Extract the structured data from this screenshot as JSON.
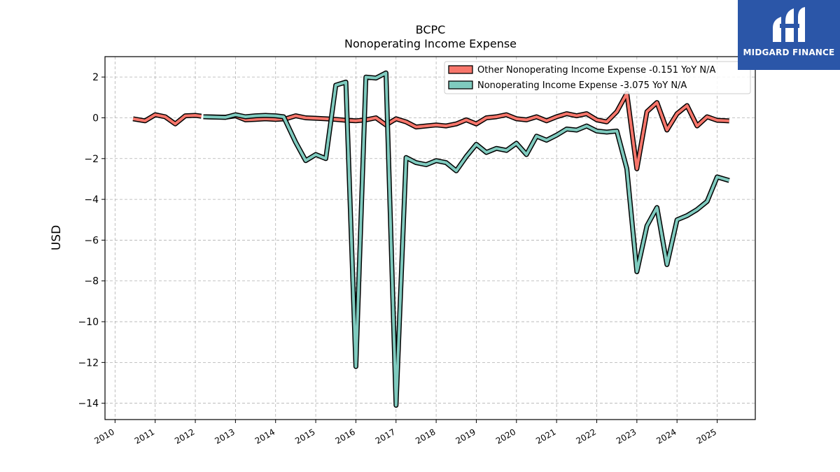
{
  "chart_data": {
    "type": "line",
    "title": "BCPC",
    "subtitle": "Nonoperating Income Expense",
    "ylabel": "USD",
    "xlabel": "",
    "ylim": [
      -14.8,
      3.0
    ],
    "xlim": [
      2009.75,
      2025.95
    ],
    "yticks": [
      2,
      0,
      -2,
      -4,
      -6,
      -8,
      -10,
      -12,
      -14
    ],
    "xticks": [
      "2010",
      "2011",
      "2012",
      "2013",
      "2014",
      "2015",
      "2016",
      "2017",
      "2018",
      "2019",
      "2020",
      "2021",
      "2022",
      "2023",
      "2024",
      "2025"
    ],
    "grid": true,
    "legend_position": "top-right",
    "series": [
      {
        "name": "Other Nonoperating Income Expense  -0.151 YoY N/A",
        "color": "#f7766b",
        "segments": [
          [
            [
              2010.45,
              -0.05
            ],
            [
              2010.75,
              -0.15
            ],
            [
              2011.0,
              0.15
            ],
            [
              2011.25,
              0.05
            ],
            [
              2011.5,
              -0.3
            ],
            [
              2011.75,
              0.1
            ],
            [
              2012.0,
              0.12
            ],
            [
              2012.15,
              0.08
            ]
          ],
          [
            [
              2012.25,
              0.05
            ],
            [
              2012.75,
              0.03
            ],
            [
              2013.0,
              0.1
            ],
            [
              2013.25,
              -0.1
            ],
            [
              2013.5,
              -0.08
            ],
            [
              2013.75,
              -0.05
            ],
            [
              2014.0,
              -0.08
            ],
            [
              2014.25,
              -0.05
            ],
            [
              2014.5,
              0.1
            ],
            [
              2014.75,
              0.0
            ],
            [
              2015.0,
              -0.02
            ],
            [
              2015.25,
              -0.05
            ],
            [
              2015.5,
              -0.08
            ],
            [
              2015.75,
              -0.12
            ],
            [
              2016.0,
              -0.15
            ],
            [
              2016.25,
              -0.1
            ],
            [
              2016.5,
              0.0
            ],
            [
              2016.75,
              -0.35
            ],
            [
              2017.0,
              -0.05
            ],
            [
              2017.25,
              -0.2
            ],
            [
              2017.5,
              -0.45
            ],
            [
              2017.75,
              -0.4
            ],
            [
              2018.0,
              -0.35
            ],
            [
              2018.25,
              -0.4
            ],
            [
              2018.5,
              -0.3
            ],
            [
              2018.75,
              -0.1
            ],
            [
              2019.0,
              -0.3
            ],
            [
              2019.25,
              0.0
            ],
            [
              2019.5,
              0.05
            ],
            [
              2019.75,
              0.15
            ],
            [
              2020.0,
              -0.05
            ],
            [
              2020.25,
              -0.1
            ],
            [
              2020.5,
              0.05
            ],
            [
              2020.75,
              -0.15
            ],
            [
              2021.0,
              0.05
            ],
            [
              2021.25,
              0.2
            ],
            [
              2021.5,
              0.1
            ],
            [
              2021.75,
              0.2
            ],
            [
              2022.0,
              -0.1
            ],
            [
              2022.25,
              -0.2
            ],
            [
              2022.5,
              0.3
            ],
            [
              2022.75,
              1.2
            ],
            [
              2023.0,
              -2.5
            ],
            [
              2023.25,
              0.3
            ],
            [
              2023.5,
              0.75
            ],
            [
              2023.75,
              -0.6
            ],
            [
              2024.0,
              0.2
            ],
            [
              2024.25,
              0.6
            ],
            [
              2024.5,
              -0.4
            ],
            [
              2024.75,
              0.05
            ],
            [
              2025.0,
              -0.12
            ],
            [
              2025.3,
              -0.151
            ]
          ]
        ]
      },
      {
        "name": "Nonoperating Income Expense  -3.075 YoY N/A",
        "color": "#7fcbbf",
        "segments": [
          [
            [
              2012.2,
              0.05
            ],
            [
              2012.75,
              0.02
            ],
            [
              2013.0,
              0.15
            ],
            [
              2013.25,
              0.05
            ],
            [
              2013.5,
              0.1
            ],
            [
              2013.75,
              0.12
            ],
            [
              2014.0,
              0.1
            ],
            [
              2014.2,
              0.05
            ],
            [
              2014.5,
              -1.2
            ],
            [
              2014.75,
              -2.1
            ],
            [
              2015.0,
              -1.8
            ],
            [
              2015.25,
              -2.0
            ],
            [
              2015.5,
              1.6
            ],
            [
              2015.75,
              1.75
            ],
            [
              2016.0,
              -12.2
            ],
            [
              2016.25,
              2.0
            ],
            [
              2016.5,
              1.95
            ],
            [
              2016.75,
              2.2
            ],
            [
              2017.0,
              -14.1
            ],
            [
              2017.25,
              -1.95
            ],
            [
              2017.5,
              -2.2
            ],
            [
              2017.75,
              -2.3
            ],
            [
              2018.0,
              -2.1
            ],
            [
              2018.25,
              -2.2
            ],
            [
              2018.5,
              -2.6
            ],
            [
              2018.75,
              -1.9
            ],
            [
              2019.0,
              -1.3
            ],
            [
              2019.25,
              -1.7
            ],
            [
              2019.5,
              -1.5
            ],
            [
              2019.75,
              -1.6
            ],
            [
              2020.0,
              -1.25
            ],
            [
              2020.25,
              -1.8
            ],
            [
              2020.5,
              -0.9
            ],
            [
              2020.75,
              -1.1
            ],
            [
              2021.0,
              -0.85
            ],
            [
              2021.25,
              -0.55
            ],
            [
              2021.5,
              -0.6
            ],
            [
              2021.75,
              -0.4
            ],
            [
              2022.0,
              -0.65
            ],
            [
              2022.25,
              -0.7
            ],
            [
              2022.5,
              -0.65
            ],
            [
              2022.75,
              -2.5
            ],
            [
              2023.0,
              -7.55
            ],
            [
              2023.25,
              -5.3
            ],
            [
              2023.5,
              -4.4
            ],
            [
              2023.75,
              -7.2
            ],
            [
              2024.0,
              -5.0
            ],
            [
              2024.25,
              -4.8
            ],
            [
              2024.5,
              -4.5
            ],
            [
              2024.75,
              -4.1
            ],
            [
              2025.0,
              -2.9
            ],
            [
              2025.3,
              -3.075
            ]
          ]
        ]
      }
    ]
  },
  "logo": {
    "text": "MIDGARD FINANCE",
    "color": "#2b56a8"
  }
}
